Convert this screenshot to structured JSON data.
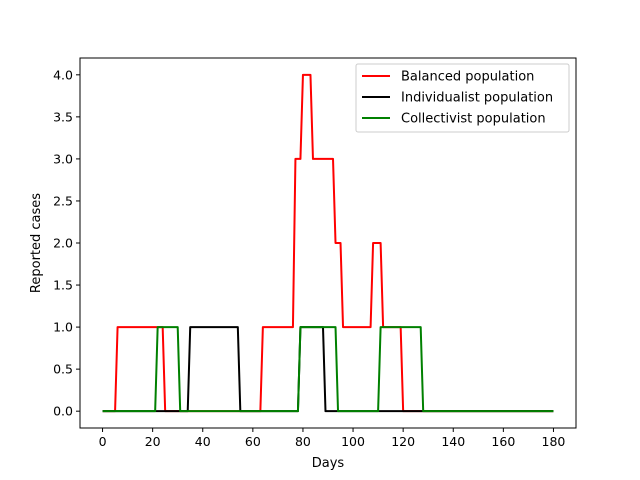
{
  "chart_data": {
    "type": "line",
    "title": "",
    "xlabel": "Days",
    "ylabel": "Reported cases",
    "xlim": [
      -9,
      189
    ],
    "ylim": [
      -0.2,
      4.2
    ],
    "xticks": [
      "0",
      "20",
      "40",
      "60",
      "80",
      "100",
      "120",
      "140",
      "160",
      "180"
    ],
    "yticks": [
      "0.0",
      "0.5",
      "1.0",
      "1.5",
      "2.0",
      "2.5",
      "3.0",
      "3.5",
      "4.0"
    ],
    "grid": false,
    "legend_position": "top-right",
    "series": [
      {
        "name": "Balanced population",
        "color": "#ff0000",
        "x": [
          0,
          5,
          6,
          24,
          25,
          63,
          64,
          76,
          77,
          79,
          80,
          83,
          84,
          92,
          93,
          95,
          96,
          107,
          108,
          111,
          112,
          119,
          120,
          180
        ],
        "y": [
          0,
          0,
          1,
          1,
          0,
          0,
          1,
          1,
          3,
          3,
          4,
          4,
          3,
          3,
          2,
          2,
          1,
          1,
          2,
          2,
          1,
          1,
          0,
          0
        ]
      },
      {
        "name": "Individualist population",
        "color": "#000000",
        "x": [
          0,
          34,
          35,
          54,
          55,
          78,
          79,
          88,
          89,
          180
        ],
        "y": [
          0,
          0,
          1,
          1,
          0,
          0,
          1,
          1,
          0,
          0
        ]
      },
      {
        "name": "Collectivist population",
        "color": "#008000",
        "x": [
          0,
          21,
          22,
          30,
          31,
          78,
          79,
          93,
          94,
          110,
          111,
          127,
          128,
          180
        ],
        "y": [
          0,
          0,
          1,
          1,
          0,
          0,
          1,
          1,
          0,
          0,
          1,
          1,
          0,
          0
        ]
      }
    ]
  }
}
